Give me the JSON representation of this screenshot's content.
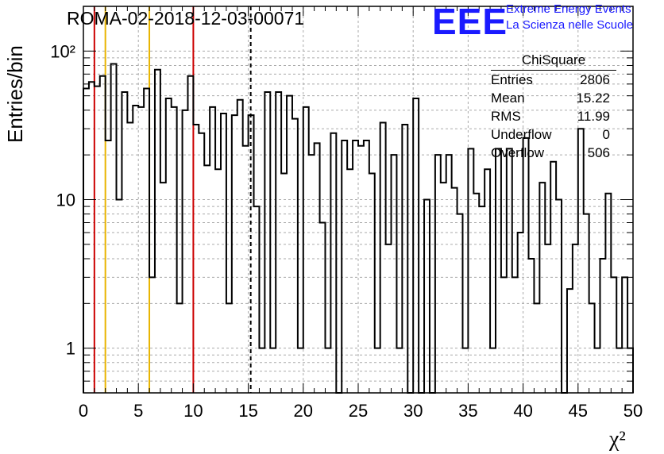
{
  "title": "ROMA-02-2018-12-03-00071",
  "logo": {
    "mark": "EEE",
    "line1": "Extreme Energy Events",
    "line2": "La Scienza nelle Scuole",
    "color": "#1a1aff"
  },
  "stats": {
    "name": "ChiSquare",
    "rows": [
      {
        "label": "Entries",
        "value": "2806"
      },
      {
        "label": "Mean",
        "value": "15.22"
      },
      {
        "label": "RMS",
        "value": "11.99"
      },
      {
        "label": "Underflow",
        "value": "0"
      },
      {
        "label": "Overflow",
        "value": "506"
      }
    ]
  },
  "chart_data": {
    "type": "histogram",
    "title": "ROMA-02-2018-12-03-00071",
    "xlabel": "χ²",
    "ylabel": "Entries/bin",
    "xlim": [
      0,
      50
    ],
    "ylim": [
      0.5,
      200
    ],
    "yscale": "log",
    "grid": true,
    "x_ticks": [
      "0",
      "5",
      "10",
      "15",
      "20",
      "25",
      "30",
      "35",
      "40",
      "45",
      "50"
    ],
    "y_ticks": [
      "1",
      "10",
      "10²"
    ],
    "bin_width": 0.5,
    "bin_values": [
      56,
      62,
      58,
      68,
      25,
      82,
      10,
      53,
      33,
      43,
      42,
      56,
      3,
      75,
      13,
      48,
      42,
      2,
      40,
      68,
      32,
      28,
      17,
      42,
      16,
      38,
      2,
      37,
      47,
      23,
      37,
      9,
      1,
      53,
      1,
      53,
      15,
      50,
      35,
      1,
      42,
      20,
      24,
      7,
      1,
      28,
      0.5,
      25,
      16,
      25,
      23,
      25,
      15,
      1,
      33,
      5,
      20,
      1,
      32,
      0.5,
      48,
      0.5,
      10,
      0.5,
      20,
      13,
      20,
      12,
      8,
      1,
      22,
      11,
      9,
      16,
      1,
      22,
      3,
      22,
      3,
      6,
      26,
      4,
      2,
      13,
      5,
      18,
      10,
      0.5,
      2.5,
      5,
      30,
      8,
      2,
      1,
      4,
      11,
      3,
      1,
      3,
      1
    ],
    "reference_lines": [
      {
        "x": 1,
        "color": "#cc0000",
        "style": "solid"
      },
      {
        "x": 2,
        "color": "#e8b400",
        "style": "solid"
      },
      {
        "x": 6,
        "color": "#e8b400",
        "style": "solid"
      },
      {
        "x": 10,
        "color": "#cc0000",
        "style": "solid"
      },
      {
        "x": 15.22,
        "color": "#000000",
        "style": "dashed"
      }
    ]
  }
}
